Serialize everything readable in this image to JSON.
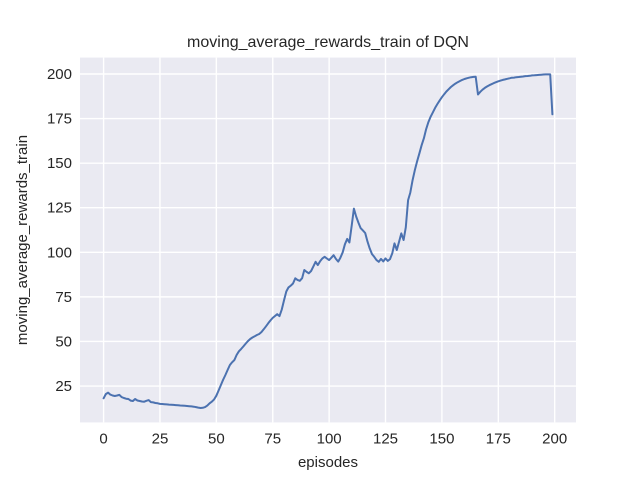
{
  "chart_data": {
    "type": "line",
    "title": "moving_average_rewards_train of DQN",
    "xlabel": "episodes",
    "ylabel": "moving_average_rewards_train",
    "legend": "none",
    "grid": true,
    "style": "seaborn-darkgrid",
    "xlim": [
      -10.45,
      209.45
    ],
    "ylim": [
      4.6,
      209.2
    ],
    "xticks": [
      0,
      25,
      50,
      75,
      100,
      125,
      150,
      175,
      200
    ],
    "yticks": [
      25,
      50,
      75,
      100,
      125,
      150,
      175,
      200
    ],
    "x_start": 0,
    "x_step": 1,
    "values": [
      18.1,
      20.5,
      21.3,
      20.2,
      19.7,
      19.4,
      19.7,
      20.0,
      18.8,
      18.3,
      17.9,
      17.7,
      16.8,
      16.6,
      17.7,
      16.9,
      16.6,
      16.3,
      16.2,
      16.7,
      17.1,
      16.0,
      15.8,
      15.5,
      15.3,
      15.0,
      14.9,
      14.8,
      14.7,
      14.6,
      14.5,
      14.4,
      14.3,
      14.2,
      14.1,
      14.0,
      13.9,
      13.8,
      13.7,
      13.6,
      13.4,
      13.2,
      12.9,
      12.7,
      12.8,
      13.2,
      14.0,
      15.3,
      16.2,
      17.5,
      19.5,
      22.5,
      25.6,
      28.5,
      31.2,
      34.0,
      36.8,
      38.3,
      39.6,
      42.4,
      44.5,
      45.8,
      47.2,
      48.8,
      50.2,
      51.4,
      52.2,
      52.9,
      53.6,
      54.2,
      55.3,
      56.8,
      58.5,
      60.2,
      61.8,
      63.2,
      64.3,
      65.3,
      64.2,
      68.0,
      73.0,
      78.0,
      80.3,
      81.3,
      82.5,
      85.4,
      84.5,
      84.0,
      85.5,
      90.1,
      89.0,
      88.2,
      89.5,
      92.0,
      94.7,
      92.8,
      95.0,
      96.6,
      97.5,
      96.5,
      95.6,
      97.0,
      98.4,
      96.3,
      94.8,
      97.0,
      100.0,
      104.5,
      107.5,
      105.5,
      115.0,
      124.5,
      120.0,
      116.5,
      113.5,
      112.2,
      110.8,
      106.0,
      102.2,
      99.0,
      97.5,
      95.6,
      94.7,
      96.3,
      94.9,
      96.6,
      95.2,
      96.2,
      99.5,
      105.0,
      101.3,
      106.0,
      110.6,
      106.9,
      114.0,
      129.3,
      133.5,
      140.5,
      146.0,
      151.0,
      155.5,
      160.0,
      164.0,
      169.0,
      173.0,
      176.0,
      178.5,
      181.0,
      183.2,
      185.2,
      187.0,
      188.7,
      190.2,
      191.5,
      192.7,
      193.7,
      194.6,
      195.4,
      196.1,
      196.7,
      197.2,
      197.6,
      197.9,
      198.2,
      198.4,
      198.5,
      188.5,
      190.0,
      191.2,
      192.2,
      193.0,
      193.7,
      194.3,
      194.9,
      195.4,
      195.9,
      196.3,
      196.7,
      197.0,
      197.3,
      197.6,
      197.9,
      198.0,
      198.2,
      198.3,
      198.5,
      198.6,
      198.8,
      198.9,
      199.0,
      199.2,
      199.3,
      199.4,
      199.5,
      199.6,
      199.7,
      199.8,
      199.8,
      199.8,
      177.4
    ],
    "colors": {
      "line": "#4c72b0",
      "plot_background": "#eaeaf2",
      "gridline": "#ffffff",
      "text": "#262626",
      "figure_background": "#ffffff"
    }
  }
}
